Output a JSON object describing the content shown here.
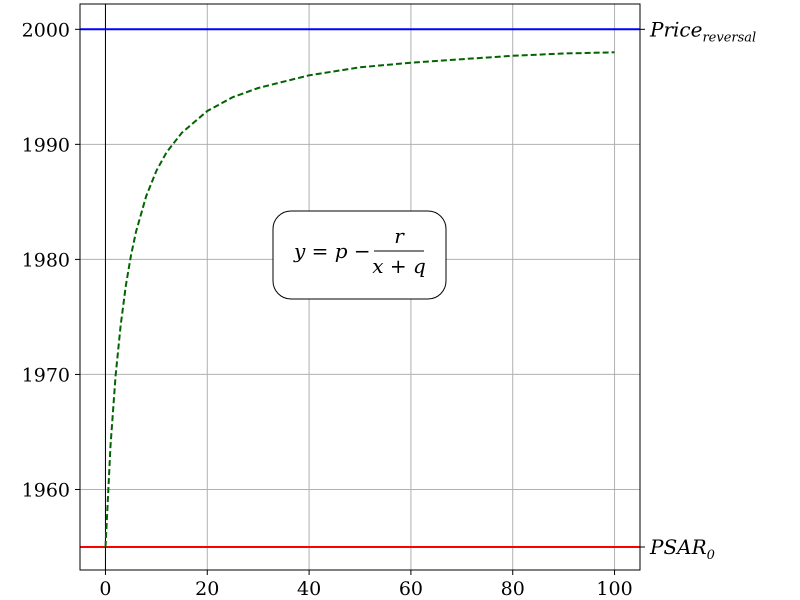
{
  "chart_data": {
    "type": "line",
    "title": "",
    "xlabel": "",
    "ylabel": "",
    "xlim": [
      -5,
      105
    ],
    "ylim": [
      1953,
      2002.2
    ],
    "grid": true,
    "x_ticks": [
      0,
      20,
      40,
      60,
      80,
      100
    ],
    "y_ticks": [
      1960,
      1970,
      1980,
      1990,
      2000
    ],
    "x_tick_labels": [
      "0",
      "20",
      "40",
      "60",
      "80",
      "100"
    ],
    "y_tick_labels": [
      "1960",
      "1970",
      "1980",
      "1990",
      "2000"
    ],
    "reference_lines": [
      {
        "orientation": "horizontal",
        "y": 2000,
        "color": "#0000ff",
        "label_base": "Price",
        "label_sub": "reversal"
      },
      {
        "orientation": "horizontal",
        "y": 1955,
        "color": "#ff0000",
        "label_base": "PSAR",
        "label_sub": "0"
      },
      {
        "orientation": "vertical",
        "x": 0,
        "color": "#000000"
      }
    ],
    "series": [
      {
        "style": "dashed",
        "color": "#006400",
        "x": [
          0,
          1,
          2,
          3,
          4,
          5,
          6,
          8,
          10,
          12,
          15,
          20,
          25,
          30,
          40,
          50,
          60,
          70,
          80,
          90,
          100
        ],
        "y": [
          1955.0,
          1963.8,
          1969.9,
          1974.3,
          1977.7,
          1980.3,
          1982.4,
          1985.5,
          1987.7,
          1989.3,
          1991.0,
          1992.9,
          1994.1,
          1994.9,
          1996.0,
          1996.7,
          1997.1,
          1997.4,
          1997.7,
          1997.9,
          1998.0
        ]
      }
    ],
    "annotation": {
      "formula_lhs": "y = p −",
      "formula_num": "r",
      "formula_den": "x + q"
    }
  }
}
